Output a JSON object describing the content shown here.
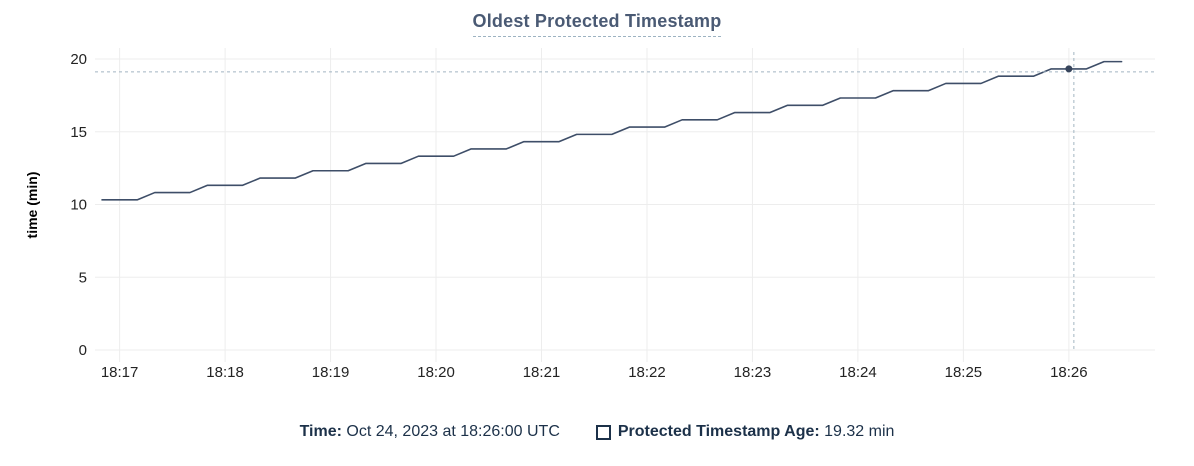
{
  "chart": {
    "title": "Oldest Protected Timestamp"
  },
  "legend": {
    "time_label": "Time:",
    "time_value": "Oct 24, 2023 at 18:26:00 UTC",
    "series_label": "Protected Timestamp Age:",
    "series_value": "19.32 min"
  },
  "colors": {
    "line": "#3e4e68",
    "dot": "#37455c",
    "grid": "#ededed",
    "crosshair": "#a2b5c2",
    "title_text": "#4a5a74",
    "legend_text": "#1c3149",
    "tick_text": "#232323"
  },
  "chart_data": {
    "type": "line",
    "title": "Oldest Protected Timestamp",
    "xlabel": "",
    "ylabel": "time (min)",
    "ylim": [
      0,
      20
    ],
    "y_ticks": [
      0,
      5,
      10,
      15,
      20
    ],
    "x_ticks": [
      "18:17",
      "18:18",
      "18:19",
      "18:20",
      "18:21",
      "18:22",
      "18:23",
      "18:24",
      "18:25",
      "18:26"
    ],
    "xlim": [
      "18:16:46",
      "18:26:49"
    ],
    "grid": true,
    "legend_position": "bottom",
    "series": [
      {
        "name": "Protected Timestamp Age",
        "unit": "min",
        "x": [
          "18:16:50",
          "18:17:00",
          "18:17:10",
          "18:17:20",
          "18:17:30",
          "18:17:40",
          "18:17:50",
          "18:18:00",
          "18:18:10",
          "18:18:20",
          "18:18:30",
          "18:18:40",
          "18:18:50",
          "18:19:00",
          "18:19:10",
          "18:19:20",
          "18:19:30",
          "18:19:40",
          "18:19:50",
          "18:20:00",
          "18:20:10",
          "18:20:20",
          "18:20:30",
          "18:20:40",
          "18:20:50",
          "18:21:00",
          "18:21:10",
          "18:21:20",
          "18:21:30",
          "18:21:40",
          "18:21:50",
          "18:22:00",
          "18:22:10",
          "18:22:20",
          "18:22:30",
          "18:22:40",
          "18:22:50",
          "18:23:00",
          "18:23:10",
          "18:23:20",
          "18:23:30",
          "18:23:40",
          "18:23:50",
          "18:24:00",
          "18:24:10",
          "18:24:20",
          "18:24:30",
          "18:24:40",
          "18:24:50",
          "18:25:00",
          "18:25:10",
          "18:25:20",
          "18:25:30",
          "18:25:40",
          "18:25:50",
          "18:26:00",
          "18:26:10",
          "18:26:20",
          "18:26:30"
        ],
        "values": [
          10.32,
          10.32,
          10.32,
          10.82,
          10.82,
          10.82,
          11.32,
          11.32,
          11.32,
          11.82,
          11.82,
          11.82,
          12.32,
          12.32,
          12.32,
          12.82,
          12.82,
          12.82,
          13.32,
          13.32,
          13.32,
          13.82,
          13.82,
          13.82,
          14.32,
          14.32,
          14.32,
          14.82,
          14.82,
          14.82,
          15.32,
          15.32,
          15.32,
          15.82,
          15.82,
          15.82,
          16.32,
          16.32,
          16.32,
          16.82,
          16.82,
          16.82,
          17.32,
          17.32,
          17.32,
          17.82,
          17.82,
          17.82,
          18.32,
          18.32,
          18.32,
          18.82,
          18.82,
          18.82,
          19.32,
          19.32,
          19.32,
          19.82,
          19.82
        ]
      }
    ],
    "hover_point": {
      "x": "18:26:00",
      "value": 19.32,
      "time_label": "Oct 24, 2023 at 18:26:00 UTC",
      "value_label": "19.32 min"
    }
  }
}
